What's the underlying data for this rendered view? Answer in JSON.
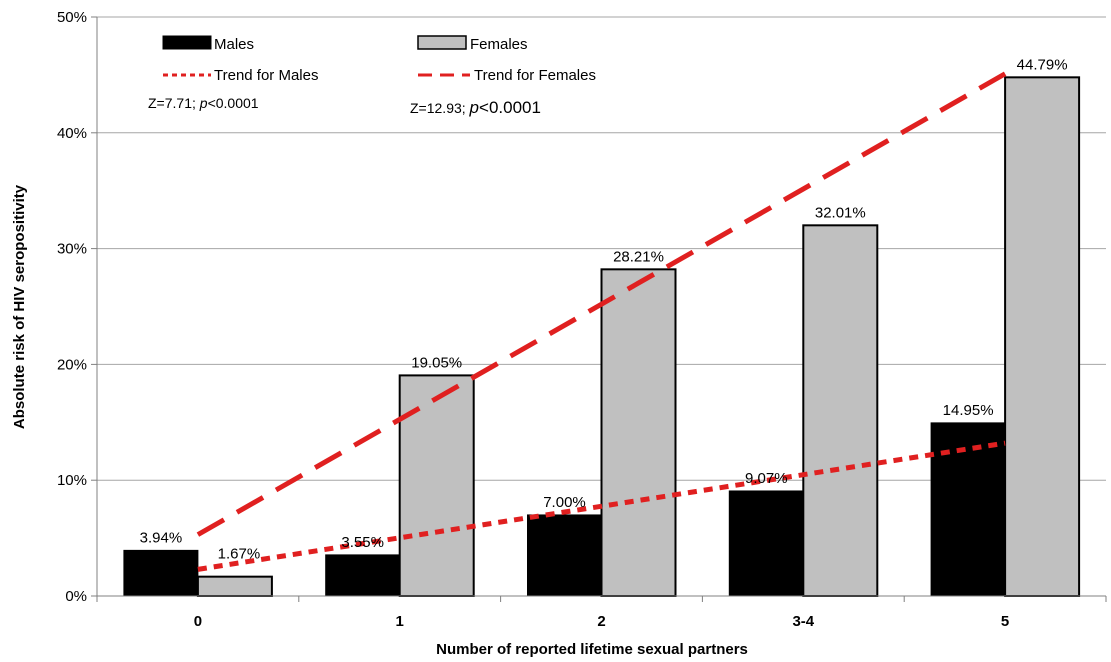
{
  "chart_data": {
    "type": "bar",
    "categories": [
      "0",
      "1",
      "2",
      "3-4",
      "5"
    ],
    "series": [
      {
        "name": "Males",
        "values": [
          3.94,
          3.55,
          7.0,
          9.07,
          14.95
        ],
        "color": "#000000"
      },
      {
        "name": "Females",
        "values": [
          1.67,
          19.05,
          28.21,
          32.01,
          44.79
        ],
        "color": "#c0c0c0"
      }
    ],
    "data_labels": {
      "Males": [
        "3.94%",
        "3.55%",
        "7.00%",
        "9.07%",
        "14.95%"
      ],
      "Females": [
        "1.67%",
        "19.05%",
        "28.21%",
        "32.01%",
        "44.79%"
      ]
    },
    "trend_lines": [
      {
        "name": "Trend for Males",
        "start": 2.3,
        "end": 13.2,
        "color": "#e02020",
        "style": "short-dash"
      },
      {
        "name": "Trend for Females",
        "start": 5.3,
        "end": 45.1,
        "color": "#e02020",
        "style": "long-dash"
      }
    ],
    "statistics": {
      "males": {
        "z": "Z=7.71;",
        "p_label": "p",
        "p_value": "<0.0001"
      },
      "females": {
        "z": "Z=12.93;",
        "p_label": "p",
        "p_value": "<0.0001"
      }
    },
    "xlabel": "Number of reported lifetime sexual partners",
    "ylabel": "Absolute risk of HIV seropositivity",
    "ylim": [
      0,
      50
    ],
    "yticks": [
      0,
      10,
      20,
      30,
      40,
      50
    ],
    "ytick_labels": [
      "0%",
      "10%",
      "20%",
      "30%",
      "40%",
      "50%"
    ],
    "grid": true,
    "legend_position": "top-left"
  }
}
